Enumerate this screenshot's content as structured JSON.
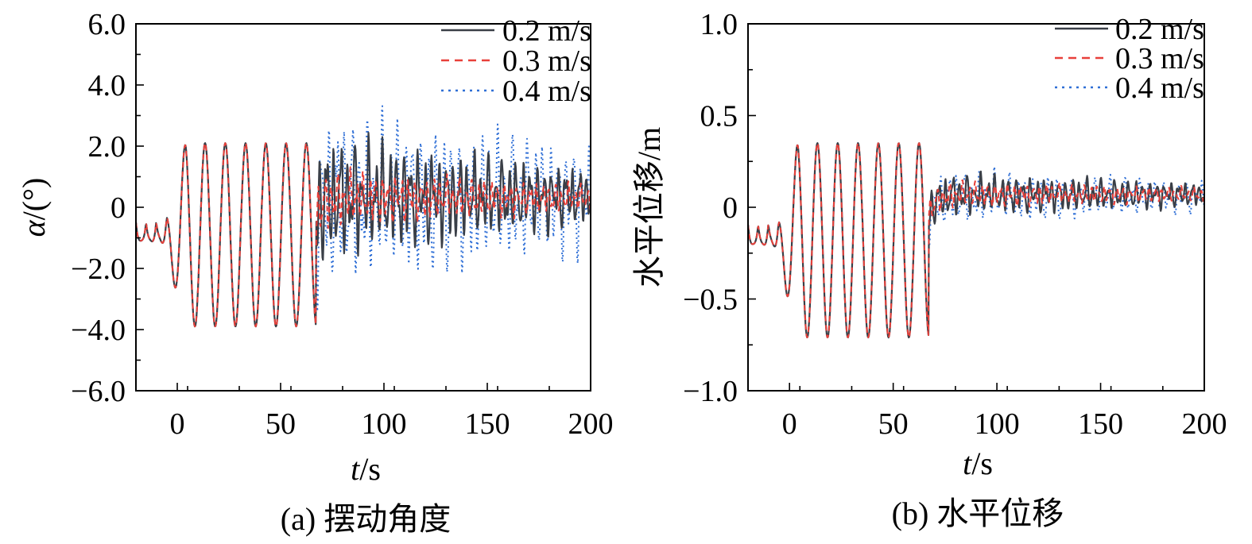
{
  "colors": {
    "v02": "#3a3f47",
    "v03": "#e8403a",
    "v04": "#2f6fd6"
  },
  "chart_data": [
    {
      "type": "line",
      "caption": "(a) 摆动角度",
      "xlabel_italic": "t",
      "xlabel_unit": "/s",
      "ylabel_italic": "α",
      "ylabel_unit": "/(°)",
      "xlim": [
        -20,
        200
      ],
      "ylim": [
        -6,
        6
      ],
      "xticks": [
        0,
        50,
        100,
        150,
        200
      ],
      "xtick_labels": [
        "0",
        "50",
        "100",
        "150",
        "200"
      ],
      "yticks": [
        -6,
        -4,
        -2,
        0,
        2,
        4,
        6
      ],
      "ytick_labels": [
        "−6.0",
        "−4.0",
        "−2.0",
        "0",
        "2.0",
        "4.0",
        "6.0"
      ],
      "legend": [
        "0.2 m/s",
        "0.3 m/s",
        "0.4 m/s"
      ],
      "series": [
        {
          "name": "0.2 m/s",
          "style": "solid",
          "params": {
            "period": 9.8,
            "wave_amp": 3.0,
            "wave_offset": -0.9,
            "impact_t": 67,
            "decay_start": 2.2,
            "decay_end": 1.0,
            "final_offset": 0.35,
            "noise_period": 3.4
          }
        },
        {
          "name": "0.3 m/s",
          "style": "dashed",
          "params": {
            "period": 9.8,
            "wave_amp": 3.0,
            "wave_offset": -0.9,
            "impact_t": 67,
            "decay_start": 1.0,
            "decay_end": 0.45,
            "final_offset": 0.3,
            "noise_period": 3.1
          }
        },
        {
          "name": "0.4 m/s",
          "style": "dotted",
          "params": {
            "period": 9.8,
            "wave_amp": 3.0,
            "wave_offset": -0.9,
            "impact_t": 67,
            "decay_start": 3.0,
            "decay_end": 1.9,
            "final_offset": 0.3,
            "noise_period": 3.7
          }
        }
      ]
    },
    {
      "type": "line",
      "caption": "(b) 水平位移",
      "xlabel_italic": "t",
      "xlabel_unit": "/s",
      "ylabel": "水平位移/m",
      "xlim": [
        -20,
        200
      ],
      "ylim": [
        -1,
        1
      ],
      "xticks": [
        0,
        50,
        100,
        150,
        200
      ],
      "xtick_labels": [
        "0",
        "50",
        "100",
        "150",
        "200"
      ],
      "yticks": [
        -1,
        -0.5,
        0,
        0.5,
        1
      ],
      "ytick_labels": [
        "−1.0",
        "−0.5",
        "0",
        "0.5",
        "1.0"
      ],
      "legend": [
        "0.2 m/s",
        "0.3 m/s",
        "0.4 m/s"
      ],
      "series": [
        {
          "name": "0.2 m/s",
          "style": "solid",
          "params": {
            "period": 9.8,
            "wave_amp": 0.53,
            "wave_offset": -0.18,
            "impact_t": 67,
            "decay_start": 0.13,
            "decay_end": 0.07,
            "final_offset": 0.07,
            "noise_period": 3.4
          }
        },
        {
          "name": "0.3 m/s",
          "style": "dashed",
          "params": {
            "period": 9.8,
            "wave_amp": 0.53,
            "wave_offset": -0.18,
            "impact_t": 67,
            "decay_start": 0.08,
            "decay_end": 0.04,
            "final_offset": 0.07,
            "noise_period": 3.1
          }
        },
        {
          "name": "0.4 m/s",
          "style": "dotted",
          "params": {
            "period": 9.8,
            "wave_amp": 0.53,
            "wave_offset": -0.18,
            "impact_t": 67,
            "decay_start": 0.16,
            "decay_end": 0.09,
            "final_offset": 0.06,
            "noise_period": 3.7
          }
        }
      ]
    }
  ]
}
